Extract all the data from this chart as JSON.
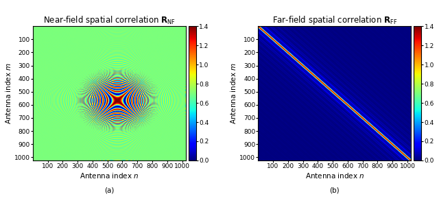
{
  "N": 1024,
  "title_nf": "Near-field spatial correlation $\\mathbf{R}_{\\mathrm{NF}}$",
  "title_ff": "Far-field spatial correlation $\\mathbf{R}_{\\mathrm{FF}}$",
  "xlabel": "Antenna index $n$",
  "ylabel": "Antenna index $m$",
  "vmin": 0.0,
  "vmax": 1.4,
  "colorbar_ticks": [
    0,
    0.2,
    0.4,
    0.6,
    0.8,
    1.0,
    1.2,
    1.4
  ],
  "label_a": "(a)",
  "label_b": "(b)",
  "axis_ticks": [
    100,
    200,
    300,
    400,
    500,
    600,
    700,
    800,
    900,
    1000
  ],
  "fig_width": 6.4,
  "fig_height": 2.96,
  "title_fontsize": 8.5,
  "label_fontsize": 7.5,
  "tick_fontsize": 6.5,
  "nf_chirp_scale": 0.00022,
  "nf_linear_freq": 0.25,
  "ff_sinc_bw": 60,
  "ff_cos_freq": 12
}
